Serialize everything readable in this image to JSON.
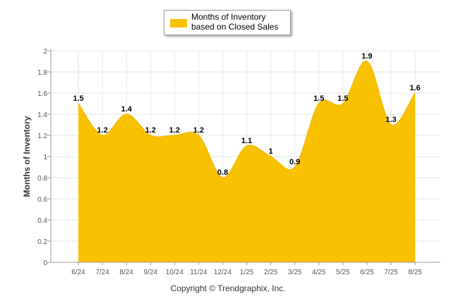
{
  "colors": {
    "fill": "#F8C200",
    "stroke": "#F0BA00",
    "grid": "#E6E6E6",
    "axis": "#555555"
  },
  "footer": {
    "copyright": "Copyright © Trendgraphix, Inc."
  },
  "chart_data": {
    "type": "area",
    "categories": [
      "6/24",
      "7/24",
      "8/24",
      "9/24",
      "10/24",
      "11/24",
      "12/24",
      "1/25",
      "2/25",
      "3/25",
      "4/25",
      "5/25",
      "6/25",
      "7/25",
      "8/25"
    ],
    "series": [
      {
        "name": "Months of Inventory based on Closed Sales",
        "values": [
          1.5,
          1.2,
          1.4,
          1.2,
          1.2,
          1.2,
          0.8,
          1.1,
          1.0,
          0.9,
          1.5,
          1.5,
          1.9,
          1.3,
          1.6
        ],
        "labels": [
          "1.5",
          "1.2",
          "1.4",
          "1.2",
          "1.2",
          "1.2",
          "0.8",
          "1.1",
          "1",
          "0.9",
          "1.5",
          "1.5",
          "1.9",
          "1.3",
          "1.6"
        ]
      }
    ],
    "ylabel": "Months of Inventory",
    "ylim": [
      0,
      2
    ],
    "yticks": [
      "0",
      "0.2",
      "0.4",
      "0.6",
      "0.8",
      "1",
      "1.2",
      "1.4",
      "1.6",
      "1.8",
      "2"
    ],
    "grid": true,
    "legend": "top-center",
    "smooth": true
  }
}
